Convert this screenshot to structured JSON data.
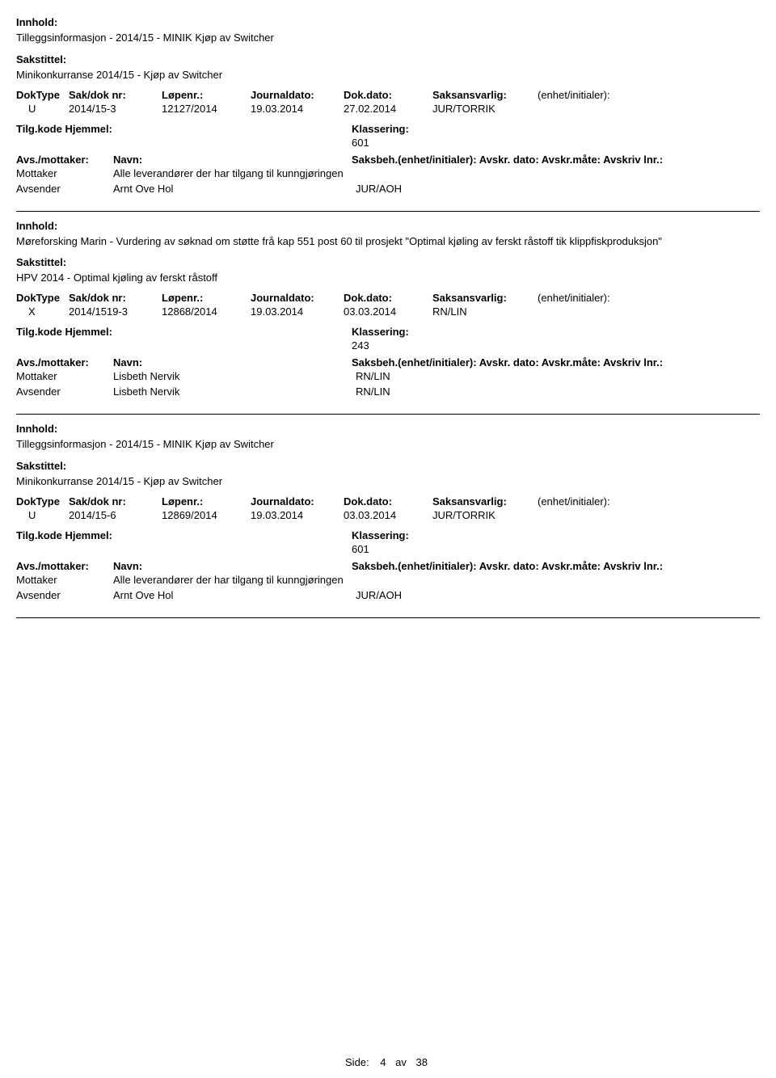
{
  "labels": {
    "innhold": "Innhold:",
    "sakstittel": "Sakstittel:",
    "doktype": "DokType",
    "sakdok": "Sak/dok nr:",
    "lopenr": "Løpenr.:",
    "journaldato": "Journaldato:",
    "dokdato": "Dok.dato:",
    "saksansvarlig": "Saksansvarlig:",
    "enhet_init": "(enhet/initialer):",
    "tilgkode": "Tilg.kode",
    "hjemmel": "Hjemmel:",
    "klassering": "Klassering:",
    "avs_mottaker": "Avs./mottaker:",
    "navn": "Navn:",
    "saksbeh_line": "Saksbeh.(enhet/initialer): Avskr. dato:   Avskr.måte:  Avskriv lnr.:",
    "mottaker": "Mottaker",
    "avsender": "Avsender",
    "side": "Side:",
    "av": "av"
  },
  "records": [
    {
      "innhold": "Tilleggsinformasjon - 2014/15 - MINIK Kjøp av Switcher",
      "sakstittel": "Minikonkurranse 2014/15 - Kjøp av Switcher",
      "doktype": "U",
      "sakdok": "2014/15-3",
      "lopenr": "12127/2014",
      "journaldato": "19.03.2014",
      "dokdato": "27.02.2014",
      "saksansvarlig": "JUR/TORRIK",
      "klassering": "601",
      "mottaker_navn": "Alle leverandører der har tilgang til kunngjøringen",
      "mottaker_beh": "",
      "avsender_navn": "Arnt Ove Hol",
      "avsender_beh": "JUR/AOH"
    },
    {
      "innhold": "Møreforsking Marin - Vurdering av søknad om støtte frå kap 551 post 60 til prosjekt \"Optimal kjøling av ferskt råstoff tik klippfiskproduksjon\"",
      "sakstittel": "HPV 2014 - Optimal kjøling av ferskt råstoff",
      "doktype": "X",
      "sakdok": "2014/1519-3",
      "lopenr": "12868/2014",
      "journaldato": "19.03.2014",
      "dokdato": "03.03.2014",
      "saksansvarlig": "RN/LIN",
      "klassering": "243",
      "mottaker_navn": "Lisbeth Nervik",
      "mottaker_beh": "RN/LIN",
      "avsender_navn": "Lisbeth Nervik",
      "avsender_beh": "RN/LIN"
    },
    {
      "innhold": "Tilleggsinformasjon - 2014/15 - MINIK Kjøp av Switcher",
      "sakstittel": "Minikonkurranse 2014/15 - Kjøp av Switcher",
      "doktype": "U",
      "sakdok": "2014/15-6",
      "lopenr": "12869/2014",
      "journaldato": "19.03.2014",
      "dokdato": "03.03.2014",
      "saksansvarlig": "JUR/TORRIK",
      "klassering": "601",
      "mottaker_navn": "Alle leverandører der har tilgang til kunngjøringen",
      "mottaker_beh": "",
      "avsender_navn": "Arnt Ove Hol",
      "avsender_beh": "JUR/AOH"
    }
  ],
  "footer": {
    "page": "4",
    "total": "38"
  }
}
